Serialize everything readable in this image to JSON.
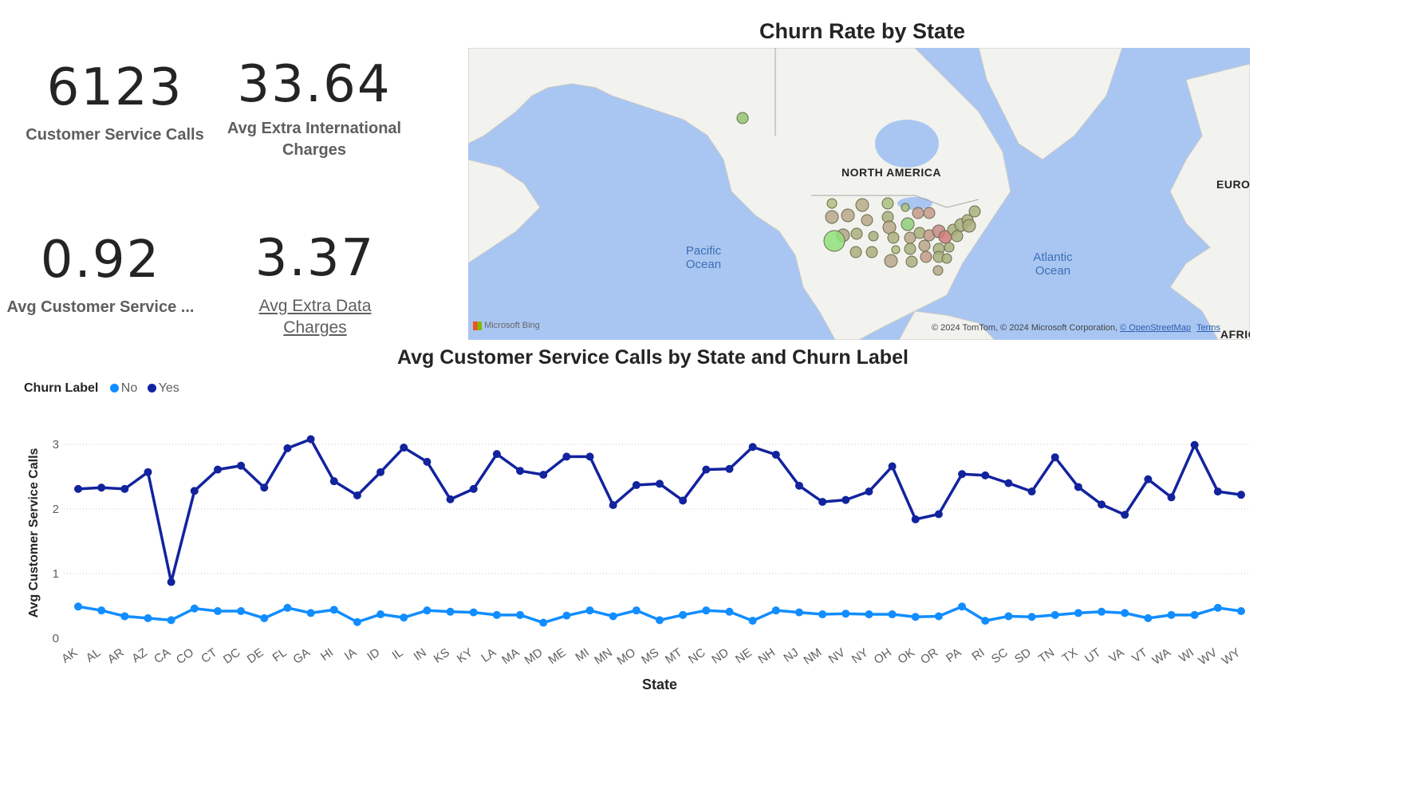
{
  "cards": [
    {
      "value": "6123",
      "label": "Customer Service Calls"
    },
    {
      "value": "33.64",
      "label": "Avg Extra International Charges"
    },
    {
      "value": "0.92",
      "label": "Avg Customer Service ..."
    },
    {
      "value": "3.37",
      "label": "Avg Extra Data Charges"
    }
  ],
  "map": {
    "title": "Churn Rate by State",
    "continent_label": "NORTH AMERICA",
    "europe_label": "EUROI",
    "africa_label": "AFRIC",
    "pacific_label": "Pacific Ocean",
    "atlantic_label": "Atlantic Ocean",
    "bing_label": "Microsoft Bing",
    "attribution": "© 2024 TomTom, © 2024 Microsoft Corporation,",
    "osm_link": "© OpenStreetMap",
    "terms_link": "Terms"
  },
  "line_chart": {
    "title": "Avg Customer Service Calls by State and Churn Label",
    "legend_title": "Churn Label",
    "colors": {
      "No": "#118dff",
      "Yes": "#12239e"
    }
  },
  "chart_data": {
    "type": "line",
    "title": "Avg Customer Service Calls by State and Churn Label",
    "xlabel": "State",
    "ylabel": "Avg Customer Service Calls",
    "ylim": [
      0,
      3
    ],
    "yticks": [
      0,
      1,
      2,
      3
    ],
    "grid": true,
    "legend": "top-left",
    "categories": [
      "AK",
      "AL",
      "AR",
      "AZ",
      "CA",
      "CO",
      "CT",
      "DC",
      "DE",
      "FL",
      "GA",
      "HI",
      "IA",
      "ID",
      "IL",
      "IN",
      "KS",
      "KY",
      "LA",
      "MA",
      "MD",
      "ME",
      "MI",
      "MN",
      "MO",
      "MS",
      "MT",
      "NC",
      "ND",
      "NE",
      "NH",
      "NJ",
      "NM",
      "NV",
      "NY",
      "OH",
      "OK",
      "OR",
      "PA",
      "RI",
      "SC",
      "SD",
      "TN",
      "TX",
      "UT",
      "VA",
      "VT",
      "WA",
      "WI",
      "WV",
      "WY"
    ],
    "series": [
      {
        "name": "No",
        "color": "#118dff",
        "values": [
          0.49,
          0.43,
          0.34,
          0.31,
          0.28,
          0.46,
          0.42,
          0.42,
          0.31,
          0.47,
          0.39,
          0.44,
          0.25,
          0.37,
          0.32,
          0.43,
          0.41,
          0.4,
          0.36,
          0.36,
          0.24,
          0.35,
          0.43,
          0.34,
          0.43,
          0.28,
          0.36,
          0.43,
          0.41,
          0.27,
          0.43,
          0.4,
          0.37,
          0.38,
          0.37,
          0.37,
          0.33,
          0.34,
          0.49,
          0.27,
          0.34,
          0.33,
          0.36,
          0.39,
          0.41,
          0.39,
          0.31,
          0.36,
          0.36,
          0.47,
          0.42
        ]
      },
      {
        "name": "Yes",
        "color": "#12239e",
        "values": [
          2.31,
          2.33,
          2.31,
          2.57,
          0.87,
          2.28,
          2.61,
          2.67,
          2.33,
          2.94,
          3.08,
          2.43,
          2.21,
          2.57,
          2.95,
          2.73,
          2.15,
          2.31,
          2.85,
          2.59,
          2.53,
          2.81,
          2.81,
          2.06,
          2.37,
          2.39,
          2.13,
          2.61,
          2.62,
          2.96,
          2.84,
          2.36,
          2.11,
          2.14,
          2.27,
          2.66,
          1.84,
          1.92,
          2.54,
          2.52,
          2.4,
          2.27,
          2.8,
          2.34,
          2.07,
          1.91,
          2.46,
          2.18,
          2.99,
          2.27,
          2.22
        ]
      }
    ]
  }
}
